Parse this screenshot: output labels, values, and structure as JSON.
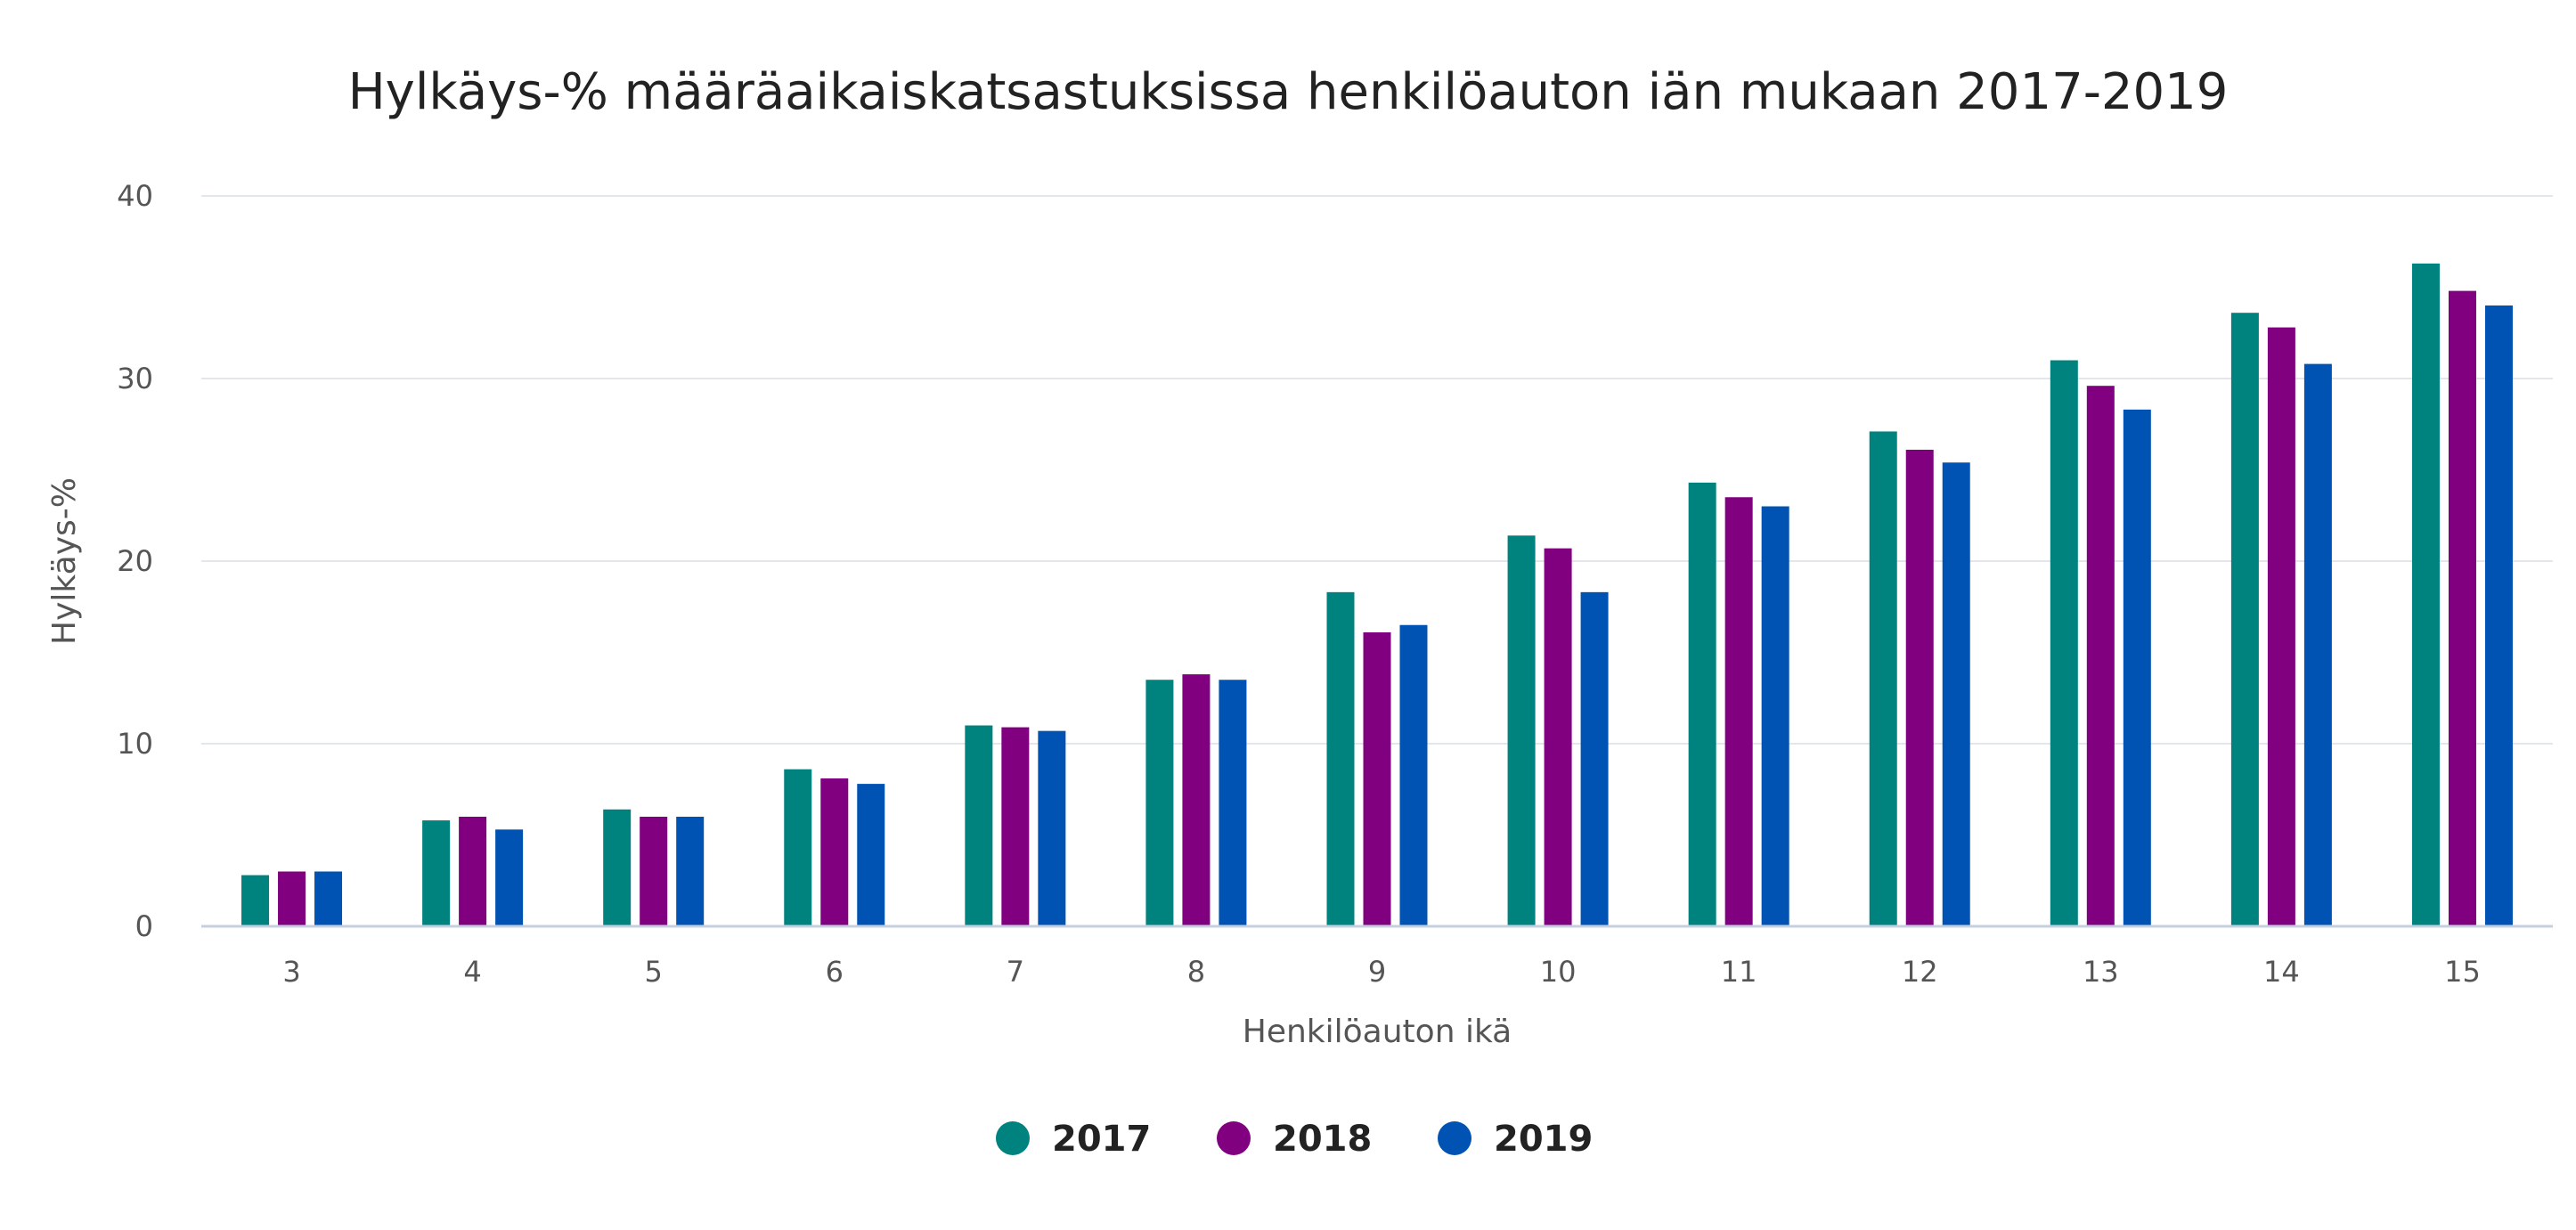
{
  "chart_data": {
    "type": "bar",
    "title": "Hylkäys-% määräaikaiskatsastuksissa henkilöauton iän mukaan 2017-2019",
    "xlabel": "Henkilöauton ikä",
    "ylabel": "Hylkäys-%",
    "ylim": [
      0,
      40
    ],
    "yticks": [
      "0",
      "10",
      "20",
      "30",
      "40"
    ],
    "grid": true,
    "legend_position": "bottom-center",
    "categories": [
      "3",
      "4",
      "5",
      "6",
      "7",
      "8",
      "9",
      "10",
      "11",
      "12",
      "13",
      "14",
      "15"
    ],
    "series": [
      {
        "name": "2017",
        "color": "#00827F",
        "values": [
          2.8,
          5.8,
          6.4,
          8.6,
          11.0,
          13.5,
          18.3,
          21.4,
          24.3,
          27.1,
          31.0,
          33.6,
          36.3
        ]
      },
      {
        "name": "2018",
        "color": "#800080",
        "values": [
          3.0,
          6.0,
          6.0,
          8.1,
          10.9,
          13.8,
          16.1,
          20.7,
          23.5,
          26.1,
          29.6,
          32.8,
          34.8
        ]
      },
      {
        "name": "2019",
        "color": "#0053B2",
        "values": [
          3.0,
          5.3,
          6.0,
          7.8,
          10.7,
          13.5,
          16.5,
          18.3,
          23.0,
          25.4,
          28.3,
          30.8,
          34.0
        ]
      }
    ]
  }
}
